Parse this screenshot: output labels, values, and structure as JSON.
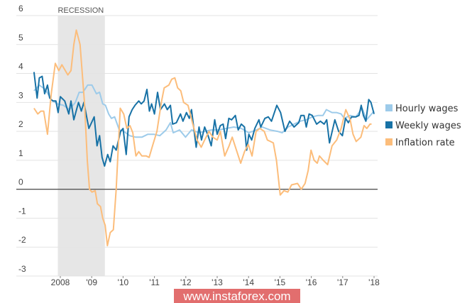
{
  "chart_data": {
    "type": "line",
    "title": "",
    "xlabel": "",
    "ylabel": "",
    "ylim": [
      -3,
      6
    ],
    "xlim": [
      2007.0,
      2018.1
    ],
    "yticks": [
      6,
      5,
      4,
      3,
      2,
      1,
      0,
      -1,
      -2,
      -3
    ],
    "xticks": [
      {
        "year": 2008,
        "label": "2008"
      },
      {
        "year": 2009,
        "label": "'09"
      },
      {
        "year": 2010,
        "label": "'10"
      },
      {
        "year": 2011,
        "label": "'11"
      },
      {
        "year": 2012,
        "label": "'12"
      },
      {
        "year": 2013,
        "label": "'13"
      },
      {
        "year": 2014,
        "label": "'14"
      },
      {
        "year": 2015,
        "label": "'15"
      },
      {
        "year": 2016,
        "label": "'16"
      },
      {
        "year": 2017,
        "label": "'17"
      },
      {
        "year": 2018,
        "label": "'18"
      }
    ],
    "grid": true,
    "legend_placement": "right",
    "annotations": [
      {
        "label": "RECESSION",
        "start": 2007.92,
        "end": 2009.42,
        "color": "#e6e6e6"
      }
    ],
    "series": [
      {
        "name": "Hourly wages",
        "color": "#9dcbea",
        "points": [
          [
            2007.16,
            3.4
          ],
          [
            2007.33,
            3.6
          ],
          [
            2007.52,
            3.45
          ],
          [
            2007.71,
            3.1
          ],
          [
            2007.9,
            2.95
          ],
          [
            2008.1,
            2.9
          ],
          [
            2008.29,
            2.75
          ],
          [
            2008.48,
            3.0
          ],
          [
            2008.6,
            3.35
          ],
          [
            2008.72,
            3.35
          ],
          [
            2008.87,
            3.6
          ],
          [
            2009.01,
            3.6
          ],
          [
            2009.15,
            3.3
          ],
          [
            2009.25,
            3.35
          ],
          [
            2009.35,
            2.95
          ],
          [
            2009.44,
            2.9
          ],
          [
            2009.54,
            2.6
          ],
          [
            2009.63,
            2.45
          ],
          [
            2009.73,
            2.5
          ],
          [
            2009.88,
            2.05
          ],
          [
            2010.02,
            2.0
          ],
          [
            2010.21,
            1.85
          ],
          [
            2010.4,
            1.8
          ],
          [
            2010.6,
            1.8
          ],
          [
            2010.79,
            1.9
          ],
          [
            2010.98,
            1.9
          ],
          [
            2011.17,
            1.85
          ],
          [
            2011.37,
            2.05
          ],
          [
            2011.51,
            2.3
          ],
          [
            2011.6,
            1.95
          ],
          [
            2011.8,
            2.05
          ],
          [
            2011.99,
            1.8
          ],
          [
            2012.18,
            2.05
          ],
          [
            2012.42,
            1.95
          ],
          [
            2012.6,
            2.0
          ],
          [
            2012.81,
            2.05
          ],
          [
            2013.05,
            2.05
          ],
          [
            2013.29,
            2.1
          ],
          [
            2013.53,
            2.15
          ],
          [
            2013.77,
            2.1
          ],
          [
            2014.01,
            1.95
          ],
          [
            2014.25,
            2.05
          ],
          [
            2014.44,
            2.15
          ],
          [
            2014.68,
            2.05
          ],
          [
            2014.92,
            2.0
          ],
          [
            2015.07,
            1.95
          ],
          [
            2015.26,
            2.15
          ],
          [
            2015.45,
            2.25
          ],
          [
            2015.64,
            2.35
          ],
          [
            2015.84,
            2.4
          ],
          [
            2016.03,
            2.5
          ],
          [
            2016.22,
            2.55
          ],
          [
            2016.37,
            2.55
          ],
          [
            2016.48,
            2.75
          ],
          [
            2016.66,
            2.65
          ],
          [
            2016.8,
            2.65
          ],
          [
            2016.95,
            2.6
          ],
          [
            2017.05,
            2.45
          ],
          [
            2017.24,
            2.55
          ],
          [
            2017.42,
            2.5
          ],
          [
            2017.62,
            2.8
          ],
          [
            2017.76,
            2.4
          ],
          [
            2018.0,
            2.7
          ]
        ]
      },
      {
        "name": "Weekly wages",
        "color": "#1872a6",
        "points": [
          [
            2007.16,
            4.05
          ],
          [
            2007.26,
            3.15
          ],
          [
            2007.33,
            3.85
          ],
          [
            2007.42,
            3.9
          ],
          [
            2007.5,
            3.3
          ],
          [
            2007.59,
            3.6
          ],
          [
            2007.66,
            3.15
          ],
          [
            2007.76,
            3.05
          ],
          [
            2007.86,
            3.05
          ],
          [
            2007.93,
            2.65
          ],
          [
            2008.0,
            3.2
          ],
          [
            2008.14,
            3.05
          ],
          [
            2008.27,
            2.6
          ],
          [
            2008.34,
            3.05
          ],
          [
            2008.43,
            2.4
          ],
          [
            2008.58,
            3.0
          ],
          [
            2008.67,
            2.7
          ],
          [
            2008.75,
            3.0
          ],
          [
            2008.91,
            2.1
          ],
          [
            2009.08,
            2.5
          ],
          [
            2009.17,
            1.5
          ],
          [
            2009.25,
            1.85
          ],
          [
            2009.33,
            1.1
          ],
          [
            2009.41,
            0.8
          ],
          [
            2009.51,
            1.2
          ],
          [
            2009.59,
            0.95
          ],
          [
            2009.68,
            1.5
          ],
          [
            2009.78,
            1.35
          ],
          [
            2009.92,
            2.0
          ],
          [
            2010.0,
            2.1
          ],
          [
            2010.1,
            1.2
          ],
          [
            2010.19,
            2.5
          ],
          [
            2010.29,
            2.75
          ],
          [
            2010.38,
            2.9
          ],
          [
            2010.5,
            3.05
          ],
          [
            2010.58,
            2.95
          ],
          [
            2010.67,
            3.05
          ],
          [
            2010.76,
            3.45
          ],
          [
            2010.84,
            2.7
          ],
          [
            2010.91,
            2.95
          ],
          [
            2011.0,
            2.6
          ],
          [
            2011.1,
            3.35
          ],
          [
            2011.19,
            2.75
          ],
          [
            2011.32,
            2.95
          ],
          [
            2011.41,
            2.75
          ],
          [
            2011.51,
            2.9
          ],
          [
            2011.58,
            2.25
          ],
          [
            2011.7,
            2.3
          ],
          [
            2011.83,
            2.6
          ],
          [
            2011.91,
            2.35
          ],
          [
            2012.02,
            2.65
          ],
          [
            2012.11,
            2.45
          ],
          [
            2012.18,
            2.75
          ],
          [
            2012.33,
            1.45
          ],
          [
            2012.42,
            2.15
          ],
          [
            2012.5,
            1.7
          ],
          [
            2012.6,
            2.15
          ],
          [
            2012.71,
            1.85
          ],
          [
            2012.81,
            1.5
          ],
          [
            2012.92,
            2.4
          ],
          [
            2013.0,
            1.9
          ],
          [
            2013.1,
            2.2
          ],
          [
            2013.19,
            2.25
          ],
          [
            2013.27,
            1.75
          ],
          [
            2013.37,
            2.45
          ],
          [
            2013.46,
            2.4
          ],
          [
            2013.58,
            2.55
          ],
          [
            2013.67,
            2.05
          ],
          [
            2013.77,
            2.25
          ],
          [
            2013.87,
            2.15
          ],
          [
            2013.94,
            1.35
          ],
          [
            2014.01,
            1.9
          ],
          [
            2014.1,
            1.7
          ],
          [
            2014.2,
            2.1
          ],
          [
            2014.33,
            2.4
          ],
          [
            2014.39,
            2.15
          ],
          [
            2014.52,
            2.45
          ],
          [
            2014.63,
            2.5
          ],
          [
            2014.73,
            2.35
          ],
          [
            2014.9,
            2.9
          ],
          [
            2015.02,
            2.65
          ],
          [
            2015.16,
            2.0
          ],
          [
            2015.31,
            2.35
          ],
          [
            2015.45,
            2.15
          ],
          [
            2015.6,
            2.3
          ],
          [
            2015.67,
            2.55
          ],
          [
            2015.77,
            2.55
          ],
          [
            2015.84,
            2.15
          ],
          [
            2015.93,
            2.6
          ],
          [
            2016.03,
            2.55
          ],
          [
            2016.17,
            2.25
          ],
          [
            2016.29,
            2.35
          ],
          [
            2016.41,
            2.25
          ],
          [
            2016.49,
            2.4
          ],
          [
            2016.58,
            1.6
          ],
          [
            2016.75,
            2.4
          ],
          [
            2016.87,
            2.0
          ],
          [
            2016.99,
            1.85
          ],
          [
            2017.09,
            2.45
          ],
          [
            2017.18,
            2.3
          ],
          [
            2017.28,
            2.5
          ],
          [
            2017.42,
            2.5
          ],
          [
            2017.52,
            2.55
          ],
          [
            2017.59,
            2.9
          ],
          [
            2017.66,
            2.55
          ],
          [
            2017.74,
            2.35
          ],
          [
            2017.83,
            3.1
          ],
          [
            2017.9,
            3.0
          ],
          [
            2018.0,
            2.6
          ]
        ]
      },
      {
        "name": "Inflation rate",
        "color": "#fcbd7b",
        "points": [
          [
            2007.16,
            2.8
          ],
          [
            2007.28,
            2.6
          ],
          [
            2007.38,
            2.7
          ],
          [
            2007.47,
            2.7
          ],
          [
            2007.59,
            1.9
          ],
          [
            2007.71,
            3.3
          ],
          [
            2007.84,
            4.35
          ],
          [
            2007.95,
            4.1
          ],
          [
            2008.05,
            4.3
          ],
          [
            2008.24,
            3.95
          ],
          [
            2008.34,
            4.1
          ],
          [
            2008.43,
            5.0
          ],
          [
            2008.51,
            5.5
          ],
          [
            2008.63,
            5.0
          ],
          [
            2008.77,
            3.0
          ],
          [
            2008.86,
            1.0
          ],
          [
            2008.93,
            0.0
          ],
          [
            2009.01,
            -0.1
          ],
          [
            2009.11,
            -0.05
          ],
          [
            2009.18,
            -0.5
          ],
          [
            2009.28,
            -0.6
          ],
          [
            2009.35,
            -1.0
          ],
          [
            2009.43,
            -1.25
          ],
          [
            2009.5,
            -1.95
          ],
          [
            2009.59,
            -1.5
          ],
          [
            2009.69,
            -1.4
          ],
          [
            2009.78,
            0.0
          ],
          [
            2009.91,
            2.8
          ],
          [
            2010.02,
            2.6
          ],
          [
            2010.12,
            2.1
          ],
          [
            2010.22,
            2.2
          ],
          [
            2010.31,
            1.95
          ],
          [
            2010.41,
            1.15
          ],
          [
            2010.5,
            1.3
          ],
          [
            2010.6,
            1.15
          ],
          [
            2010.74,
            1.15
          ],
          [
            2010.83,
            1.1
          ],
          [
            2010.94,
            1.5
          ],
          [
            2011.08,
            2.0
          ],
          [
            2011.22,
            3.0
          ],
          [
            2011.31,
            3.5
          ],
          [
            2011.46,
            3.6
          ],
          [
            2011.55,
            3.8
          ],
          [
            2011.65,
            3.85
          ],
          [
            2011.74,
            3.5
          ],
          [
            2011.84,
            3.4
          ],
          [
            2011.93,
            3.0
          ],
          [
            2012.07,
            2.9
          ],
          [
            2012.21,
            2.3
          ],
          [
            2012.36,
            1.7
          ],
          [
            2012.49,
            1.45
          ],
          [
            2012.6,
            1.7
          ],
          [
            2012.74,
            2.0
          ],
          [
            2012.86,
            1.8
          ],
          [
            2013.0,
            1.7
          ],
          [
            2013.1,
            2.0
          ],
          [
            2013.24,
            1.15
          ],
          [
            2013.38,
            1.5
          ],
          [
            2013.48,
            1.8
          ],
          [
            2013.63,
            1.3
          ],
          [
            2013.75,
            0.9
          ],
          [
            2013.87,
            1.3
          ],
          [
            2013.99,
            1.55
          ],
          [
            2014.11,
            1.15
          ],
          [
            2014.24,
            2.0
          ],
          [
            2014.36,
            2.1
          ],
          [
            2014.5,
            2.0
          ],
          [
            2014.6,
            1.7
          ],
          [
            2014.7,
            1.65
          ],
          [
            2014.79,
            1.6
          ],
          [
            2014.89,
            1.0
          ],
          [
            2015.01,
            -0.2
          ],
          [
            2015.13,
            -0.05
          ],
          [
            2015.25,
            -0.1
          ],
          [
            2015.37,
            0.15
          ],
          [
            2015.56,
            0.2
          ],
          [
            2015.68,
            0.0
          ],
          [
            2015.8,
            0.2
          ],
          [
            2015.9,
            0.65
          ],
          [
            2015.99,
            1.35
          ],
          [
            2016.09,
            1.0
          ],
          [
            2016.19,
            0.9
          ],
          [
            2016.26,
            1.15
          ],
          [
            2016.38,
            1.0
          ],
          [
            2016.52,
            0.85
          ],
          [
            2016.66,
            1.5
          ],
          [
            2016.81,
            1.7
          ],
          [
            2016.95,
            2.1
          ],
          [
            2017.1,
            2.75
          ],
          [
            2017.24,
            2.4
          ],
          [
            2017.33,
            1.9
          ],
          [
            2017.43,
            1.65
          ],
          [
            2017.58,
            1.8
          ],
          [
            2017.68,
            2.2
          ],
          [
            2017.77,
            2.1
          ],
          [
            2017.87,
            2.25
          ],
          [
            2017.92,
            2.25
          ]
        ]
      }
    ]
  },
  "watermark": {
    "text": "www.instaforex.com",
    "color": "#e06666"
  }
}
